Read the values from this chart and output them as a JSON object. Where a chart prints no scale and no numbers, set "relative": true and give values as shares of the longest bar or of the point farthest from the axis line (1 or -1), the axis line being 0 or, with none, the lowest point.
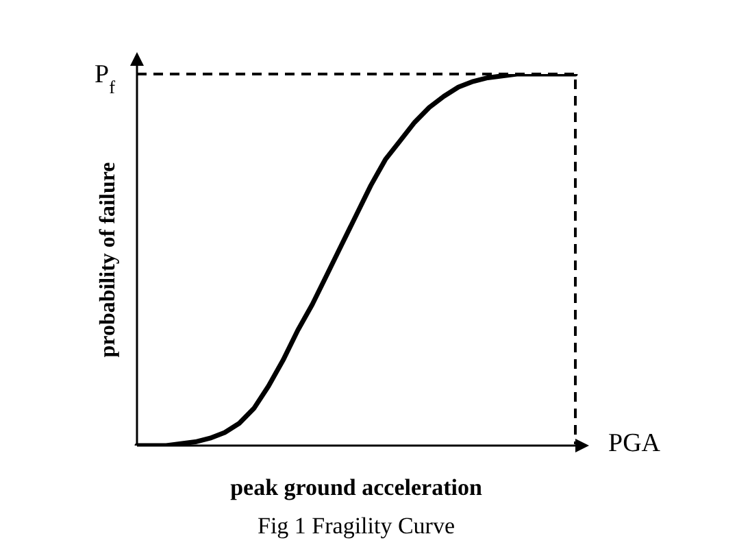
{
  "chart_data": {
    "type": "line",
    "relative": true,
    "grid": false,
    "legend": false,
    "marker": "none",
    "line_style": "solid",
    "xlabel": "peak ground acceleration",
    "ylabel": "probability of failure",
    "categories": [
      null,
      null,
      null,
      null,
      null,
      null,
      null,
      null,
      null,
      null,
      null,
      null,
      null,
      null,
      null,
      null,
      null,
      null,
      null,
      null,
      null,
      null,
      null,
      null,
      null,
      null,
      null,
      null,
      null,
      null,
      null
    ],
    "series": [
      {
        "color": "#000000",
        "values": [
          0,
          0,
          0,
          0.005,
          0.01,
          0.02,
          0.035,
          0.06,
          0.1,
          0.16,
          0.23,
          0.31,
          0.38,
          0.46,
          0.54,
          0.62,
          0.7,
          0.77,
          0.82,
          0.87,
          0.91,
          0.94,
          0.965,
          0.98,
          0.99,
          0.995,
          1,
          1,
          1,
          1,
          1
        ]
      }
    ],
    "annotations": [
      "P$_{f}$",
      "PGA",
      "Fig 1 Fragility Curve"
    ]
  }
}
